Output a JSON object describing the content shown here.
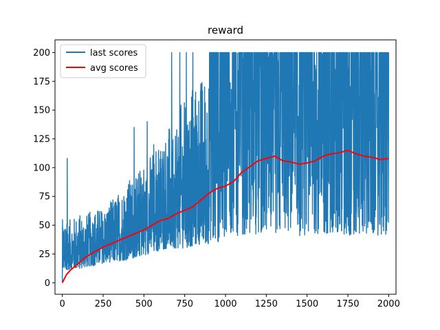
{
  "chart_data": {
    "type": "line",
    "title": "reward",
    "xlabel": "",
    "ylabel": "",
    "xlim": [
      -45,
      2045
    ],
    "ylim": [
      -10,
      211
    ],
    "xticks": [
      0,
      250,
      500,
      750,
      1000,
      1250,
      1500,
      1750,
      2000
    ],
    "yticks": [
      0,
      25,
      50,
      75,
      100,
      125,
      150,
      175,
      200
    ],
    "grid": false,
    "legend_position": "top-left",
    "series": [
      {
        "name": "last scores",
        "color": "#1f77b4",
        "style": "noisy episode scores",
        "envelope": {
          "x": [
            0,
            25,
            50,
            100,
            150,
            200,
            250,
            300,
            350,
            400,
            450,
            500,
            550,
            600,
            650,
            700,
            750,
            800,
            850,
            900,
            950,
            1000,
            1050,
            1100,
            1150,
            1200,
            1250,
            1300,
            1350,
            1400,
            1450,
            1500,
            1550,
            1600,
            1650,
            1700,
            1750,
            1800,
            1850,
            1900,
            1950,
            2000
          ],
          "low": [
            10,
            11,
            12,
            12,
            14,
            15,
            17,
            18,
            19,
            20,
            22,
            24,
            26,
            28,
            30,
            30,
            30,
            32,
            33,
            34,
            35,
            38,
            40,
            42,
            43,
            42,
            44,
            43,
            44,
            42,
            40,
            42,
            43,
            42,
            44,
            42,
            41,
            42,
            42,
            42,
            41,
            40
          ],
          "typical_high": [
            55,
            55,
            55,
            60,
            60,
            65,
            65,
            72,
            80,
            90,
            95,
            105,
            115,
            125,
            135,
            150,
            160,
            170,
            180,
            185,
            190,
            195,
            200,
            200,
            200,
            200,
            200,
            200,
            200,
            200,
            200,
            200,
            200,
            200,
            200,
            200,
            200,
            200,
            200,
            200,
            200,
            200
          ]
        },
        "spikes": [
          {
            "x": 30,
            "y": 108
          },
          {
            "x": 440,
            "y": 135
          },
          {
            "x": 520,
            "y": 140
          },
          {
            "x": 560,
            "y": 120
          },
          {
            "x": 590,
            "y": 115
          },
          {
            "x": 670,
            "y": 200
          },
          {
            "x": 720,
            "y": 200
          },
          {
            "x": 760,
            "y": 200
          },
          {
            "x": 800,
            "y": 200
          }
        ],
        "min": 0,
        "max": 200
      },
      {
        "name": "avg scores",
        "color": "#ff0000",
        "x": [
          0,
          25,
          50,
          100,
          150,
          200,
          250,
          300,
          350,
          400,
          450,
          500,
          550,
          600,
          650,
          700,
          750,
          800,
          850,
          900,
          950,
          1000,
          1050,
          1100,
          1150,
          1200,
          1250,
          1300,
          1350,
          1400,
          1450,
          1500,
          1550,
          1600,
          1650,
          1700,
          1750,
          1800,
          1850,
          1900,
          1950,
          2000
        ],
        "values": [
          0,
          7,
          11,
          17,
          23,
          27,
          31,
          34,
          37,
          40,
          43,
          46,
          50,
          54,
          56,
          60,
          63,
          66,
          72,
          78,
          82,
          84,
          88,
          96,
          101,
          106,
          108,
          110,
          106,
          105,
          103,
          104,
          106,
          110,
          112,
          113,
          115,
          112,
          110,
          109,
          107,
          108
        ]
      }
    ]
  }
}
